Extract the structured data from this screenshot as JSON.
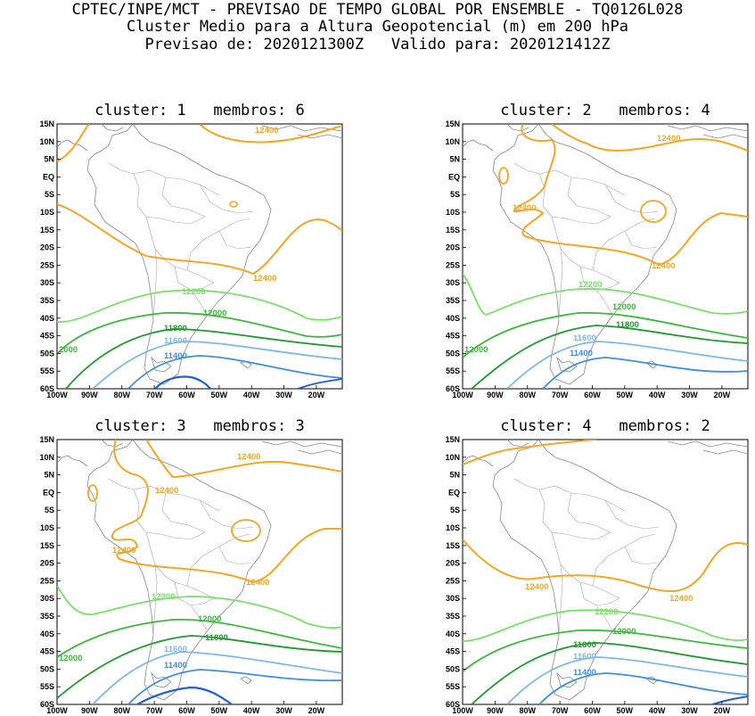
{
  "header": {
    "line1": "CPTEC/INPE/MCT - PREVISAO DE TEMPO GLOBAL POR ENSEMBLE - TQ0126L028",
    "line2": "Cluster Medio para a Altura Geopotencial (m) em 200 hPa",
    "line3": "Previsao de: 2020121300Z   Valido para: 2020121412Z"
  },
  "axes": {
    "lat_labels": [
      "15N",
      "10N",
      "5N",
      "EQ",
      "5S",
      "10S",
      "15S",
      "20S",
      "25S",
      "30S",
      "35S",
      "40S",
      "45S",
      "50S",
      "55S",
      "60S"
    ],
    "lon_labels": [
      "100W",
      "90W",
      "80W",
      "70W",
      "60W",
      "50W",
      "40W",
      "30W",
      "20W"
    ]
  },
  "colors": {
    "c12400": "#f5a623",
    "c12200": "#7be06a",
    "c12000": "#3cb83c",
    "c11800": "#1f9a2f",
    "c11600": "#7fb8ec",
    "c11400": "#3f8ee0",
    "c11200": "#1f5fd0"
  },
  "panels": [
    {
      "title": "cluster: 1   membros: 6",
      "labels": {
        "c12400a": "12400",
        "c12400b": "12400",
        "c12200": "12200",
        "c12000a": "12000",
        "c12000b": "2000",
        "c11800": "11800",
        "c11600": "11600",
        "c11400": "11400"
      }
    },
    {
      "title": "cluster: 2   membros: 4",
      "labels": {
        "c12400a": "12400",
        "c12400b": "12400",
        "c12400c": "12400",
        "c12200": "12200",
        "c12000a": "12000",
        "c12000b": "12000",
        "c11800": "11800",
        "c11600": "11600",
        "c11400": "11400"
      }
    },
    {
      "title": "cluster: 3   membros: 3",
      "labels": {
        "c12400a": "12400",
        "c12400b": "12400",
        "c12400c": "12400",
        "c12400d": "12400",
        "c12200": "12200",
        "c12000a": "12000",
        "c12000b": "12000",
        "c11800": "11800",
        "c11600": "11600",
        "c11400": "11400"
      }
    },
    {
      "title": "cluster: 4   membros: 2",
      "labels": {
        "c12400a": "12400",
        "c12400b": "12400",
        "c12200": "12200",
        "c12000": "12000",
        "c11800": "11800",
        "c11600": "11600",
        "c11400": "11400"
      }
    }
  ]
}
